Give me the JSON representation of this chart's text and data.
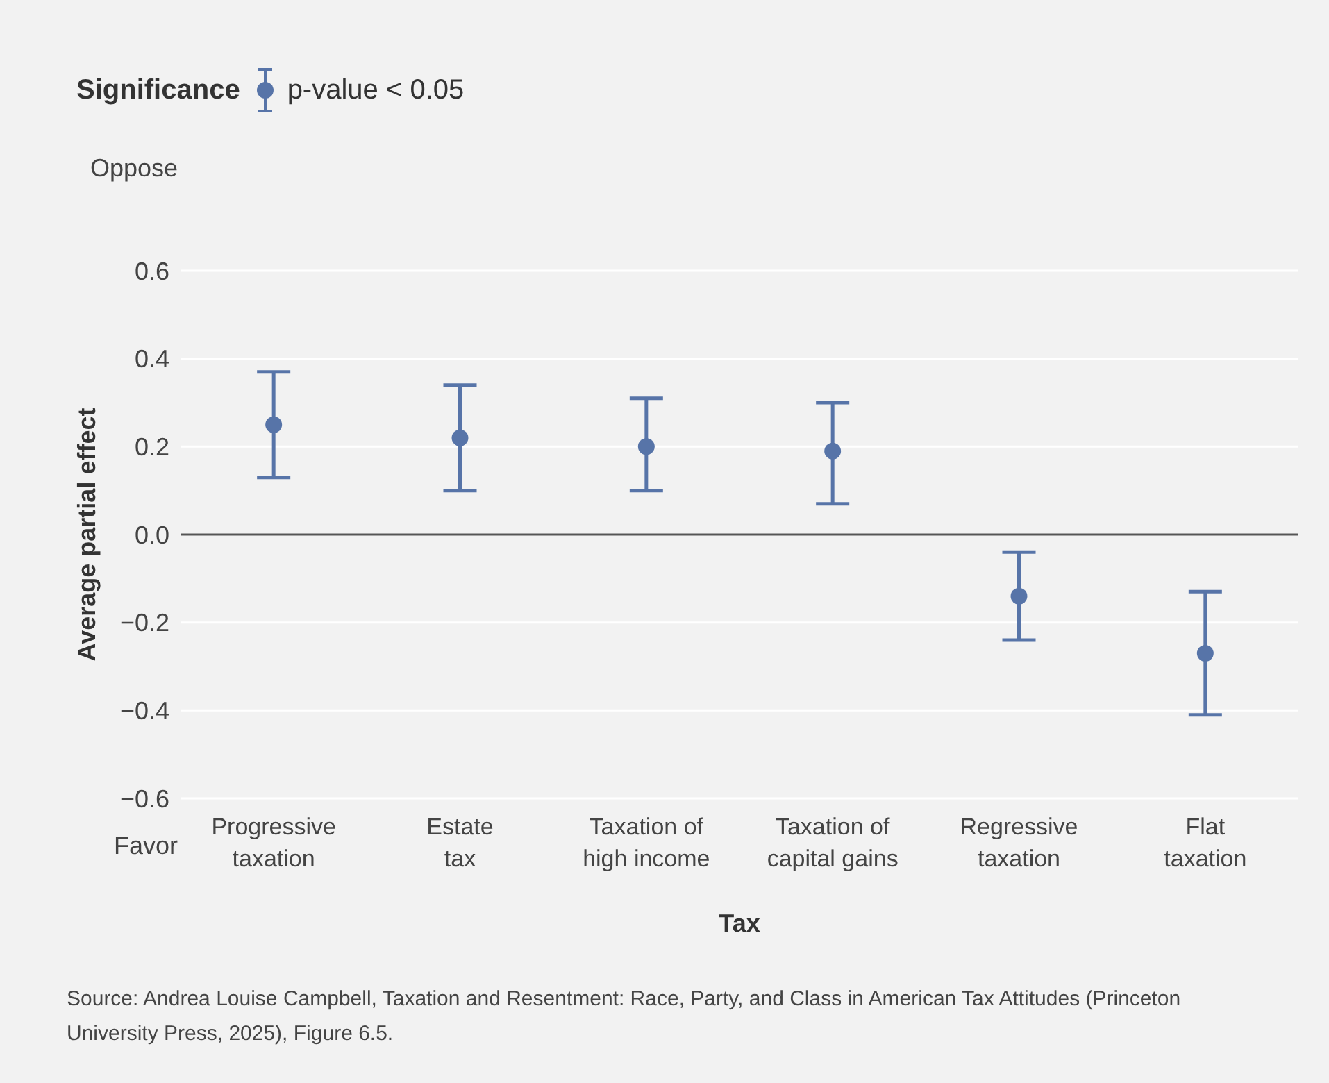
{
  "chart_data": {
    "type": "scatter",
    "xlabel": "Tax",
    "ylabel": "Average partial effect",
    "legend_title": "Significance",
    "categories": [
      "Progressive taxation",
      "Estate tax",
      "Taxation of high income",
      "Taxation of capital gains",
      "Regressive taxation",
      "Flat taxation"
    ],
    "series": [
      {
        "name": "p-value < 0.05",
        "color": "#5774a8",
        "values": [
          0.25,
          0.22,
          0.2,
          0.19,
          -0.14,
          -0.27
        ],
        "errors": [
          [
            0.13,
            0.37
          ],
          [
            0.1,
            0.34
          ],
          [
            0.1,
            0.31
          ],
          [
            0.07,
            0.3
          ],
          [
            -0.24,
            -0.04
          ],
          [
            -0.41,
            -0.13
          ]
        ]
      }
    ],
    "ylim": [
      -0.6,
      0.6
    ],
    "yticks": [
      {
        "value": -0.6,
        "label": "−0.6"
      },
      {
        "value": -0.4,
        "label": "−0.4"
      },
      {
        "value": -0.2,
        "label": "−0.2"
      },
      {
        "value": 0,
        "label": "0.0"
      },
      {
        "value": 0.2,
        "label": "0.2"
      },
      {
        "value": 0.4,
        "label": "0.4"
      },
      {
        "value": 0.6,
        "label": "0.6"
      }
    ],
    "grid": "y",
    "legend": "top left",
    "marker": "circle",
    "ref_lines": [
      {
        "axis": "y",
        "value": 0,
        "color": "#555555"
      }
    ],
    "annotations": [
      "Oppose",
      "Favor",
      "Source: Andrea Louise Campbell, Taxation and Resentment: Race, Party, and Class in American Tax Attitudes (Princeton University Press, 2025), Figure 6.5."
    ]
  }
}
